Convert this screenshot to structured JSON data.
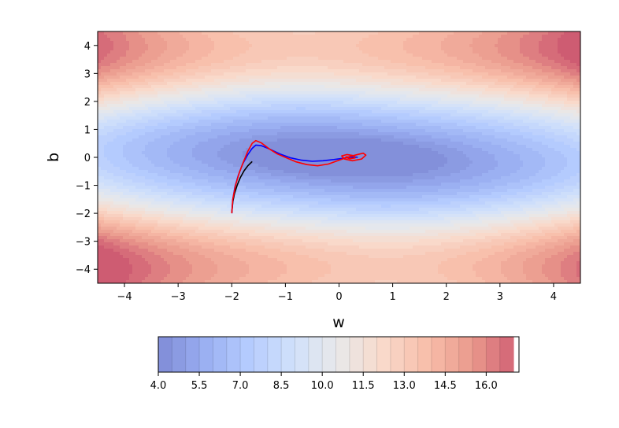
{
  "chart_data": {
    "type": "contour",
    "xlabel": "w",
    "ylabel": "b",
    "xlim": [
      -4.5,
      4.5
    ],
    "ylim": [
      -4.5,
      4.5
    ],
    "x_ticks": [
      -4,
      -3,
      -2,
      -1,
      0,
      1,
      2,
      3,
      4
    ],
    "y_ticks": [
      -4,
      -3,
      -2,
      -1,
      0,
      1,
      2,
      3,
      4
    ],
    "x_tick_labels": [
      "−4",
      "−3",
      "−2",
      "−1",
      "0",
      "1",
      "2",
      "3",
      "4"
    ],
    "y_tick_labels": [
      "−4",
      "−3",
      "−2",
      "−1",
      "0",
      "1",
      "2",
      "3",
      "4"
    ],
    "colormap": "coolwarm",
    "colormap_alpha": 0.65,
    "colorbar": {
      "orientation": "horizontal",
      "range": [
        4.0,
        17.2
      ],
      "levels_step": 0.5,
      "ticks": [
        4.0,
        5.5,
        7.0,
        8.5,
        10.0,
        11.5,
        13.0,
        14.5,
        16.0
      ],
      "tick_labels": [
        "4.0",
        "5.5",
        "7.0",
        "8.5",
        "10.0",
        "11.5",
        "13.0",
        "14.5",
        "16.0"
      ]
    },
    "minimum": {
      "w": 0.1,
      "b": 0.0
    },
    "series": [
      {
        "color": "#000000",
        "points": [
          [
            -2.0,
            -2.0
          ],
          [
            -1.98,
            -1.6
          ],
          [
            -1.95,
            -1.3
          ],
          [
            -1.9,
            -1.0
          ],
          [
            -1.84,
            -0.72
          ],
          [
            -1.77,
            -0.48
          ],
          [
            -1.7,
            -0.3
          ],
          [
            -1.62,
            -0.15
          ]
        ]
      },
      {
        "color": "#0000ff",
        "points": [
          [
            -2.0,
            -2.0
          ],
          [
            -1.98,
            -1.5
          ],
          [
            -1.94,
            -1.05
          ],
          [
            -1.88,
            -0.65
          ],
          [
            -1.8,
            -0.25
          ],
          [
            -1.7,
            0.1
          ],
          [
            -1.62,
            0.32
          ],
          [
            -1.55,
            0.44
          ],
          [
            -1.45,
            0.42
          ],
          [
            -1.3,
            0.3
          ],
          [
            -1.1,
            0.12
          ],
          [
            -0.9,
            -0.02
          ],
          [
            -0.7,
            -0.1
          ],
          [
            -0.5,
            -0.14
          ],
          [
            -0.3,
            -0.12
          ],
          [
            -0.1,
            -0.08
          ],
          [
            0.05,
            -0.04
          ],
          [
            0.2,
            0.0
          ],
          [
            0.3,
            0.01
          ],
          [
            0.35,
            0.0
          ]
        ]
      },
      {
        "color": "#ff0000",
        "points": [
          [
            -2.0,
            -2.0
          ],
          [
            -1.98,
            -1.5
          ],
          [
            -1.93,
            -1.0
          ],
          [
            -1.86,
            -0.55
          ],
          [
            -1.78,
            -0.15
          ],
          [
            -1.7,
            0.22
          ],
          [
            -1.62,
            0.5
          ],
          [
            -1.55,
            0.6
          ],
          [
            -1.45,
            0.52
          ],
          [
            -1.3,
            0.3
          ],
          [
            -1.15,
            0.12
          ],
          [
            -1.0,
            0.0
          ],
          [
            -0.8,
            -0.16
          ],
          [
            -0.6,
            -0.26
          ],
          [
            -0.4,
            -0.3
          ],
          [
            -0.2,
            -0.24
          ],
          [
            0.0,
            -0.1
          ],
          [
            0.15,
            0.0
          ],
          [
            0.3,
            0.08
          ],
          [
            0.45,
            0.15
          ],
          [
            0.5,
            0.08
          ],
          [
            0.42,
            -0.06
          ],
          [
            0.25,
            -0.12
          ],
          [
            0.1,
            -0.06
          ],
          [
            0.05,
            0.05
          ],
          [
            0.15,
            0.1
          ],
          [
            0.28,
            0.06
          ],
          [
            0.3,
            -0.02
          ],
          [
            0.2,
            -0.05
          ],
          [
            0.12,
            0.0
          ],
          [
            0.16,
            0.03
          ]
        ]
      }
    ]
  }
}
